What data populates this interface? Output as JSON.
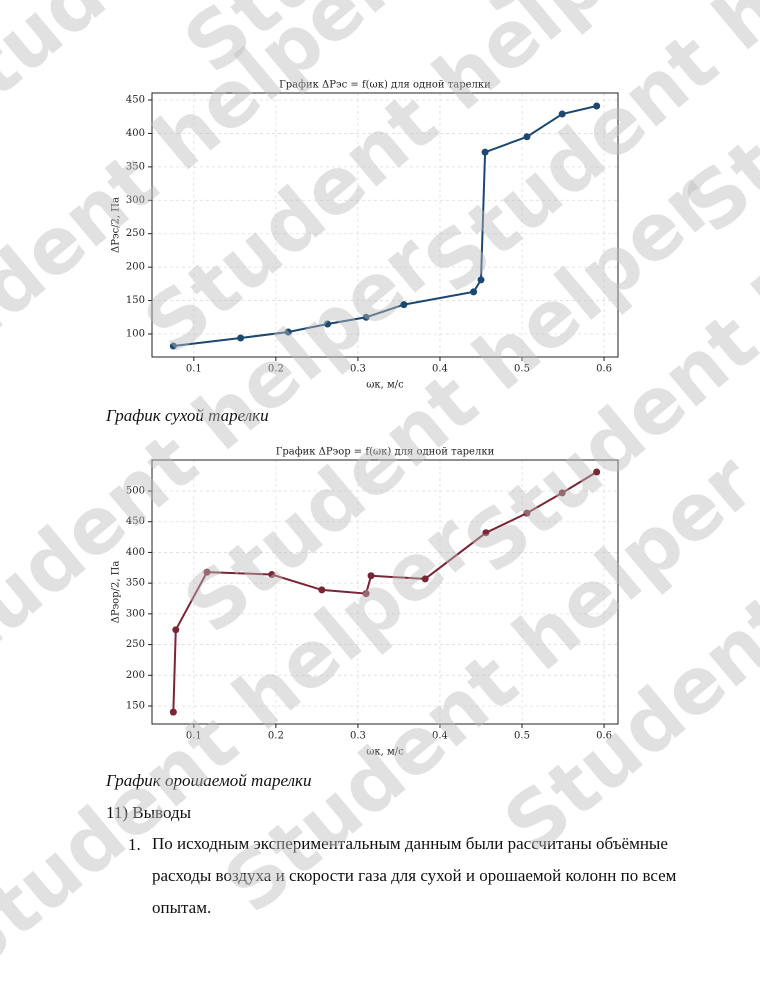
{
  "chart_data": [
    {
      "type": "line",
      "title": "График ΔPэс = f(ωк) для одной тарелки",
      "xlabel": "ωк, м/с",
      "ylabel": "ΔPэс/2, Па",
      "x": [
        0.075,
        0.157,
        0.215,
        0.263,
        0.31,
        0.356,
        0.441,
        0.45,
        0.455,
        0.506,
        0.549,
        0.591
      ],
      "values": [
        82,
        94,
        103,
        115,
        125,
        144,
        163,
        181,
        372,
        395,
        429,
        441
      ],
      "color": "#1b4770",
      "grid": true,
      "xlim": [
        0.049,
        0.617
      ],
      "xticks": [
        0.1,
        0.2,
        0.3,
        0.4,
        0.5,
        0.6
      ],
      "ylim": [
        65.6,
        460.5
      ],
      "yticks": [
        100,
        150,
        200,
        250,
        300,
        350,
        400,
        450
      ]
    },
    {
      "type": "line",
      "title": "График ΔPэор = f(ωк) для одной тарелки",
      "xlabel": "ωк, м/с",
      "ylabel": "ΔPэор/2, Па",
      "x": [
        0.075,
        0.078,
        0.116,
        0.195,
        0.256,
        0.31,
        0.316,
        0.382,
        0.456,
        0.506,
        0.549,
        0.591
      ],
      "values": [
        140,
        274,
        368,
        364,
        339,
        333,
        362,
        357,
        432,
        464,
        497,
        531
      ],
      "color": "#7a2535",
      "grid": true,
      "xlim": [
        0.049,
        0.617
      ],
      "xticks": [
        0.1,
        0.2,
        0.3,
        0.4,
        0.5,
        0.6
      ],
      "ylim": [
        120.7,
        550.5
      ],
      "yticks": [
        150,
        200,
        250,
        300,
        350,
        400,
        450,
        500
      ]
    }
  ],
  "captions": [
    "График сухой тарелки",
    "График орошаемой тарелки"
  ],
  "section": "11) Выводы",
  "list": [
    {
      "marker": "1.",
      "text": "По исходным экспериментальным данным были рассчитаны объёмные расходы воздуха и скорости газа для сухой и орошаемой колонн по всем опытам."
    }
  ],
  "watermark": "Student helper"
}
